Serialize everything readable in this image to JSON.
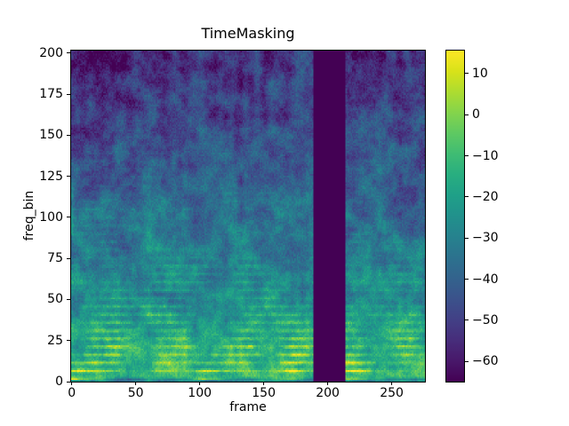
{
  "chart_data": {
    "type": "heatmap",
    "title": "TimeMasking",
    "xlabel": "frame",
    "ylabel": "freq_bin",
    "colormap": "viridis",
    "n_frames": 276,
    "n_freq_bins": 201,
    "xlim": [
      -0.5,
      276
    ],
    "ylim": [
      0,
      201.6
    ],
    "value_range": [
      -64.9,
      15.6
    ],
    "x_ticks": {
      "values": [
        0,
        50,
        100,
        150,
        200,
        250
      ],
      "labels": [
        "0",
        "50",
        "100",
        "150",
        "200",
        "250"
      ]
    },
    "y_ticks": {
      "values": [
        0,
        25,
        50,
        75,
        100,
        125,
        150,
        175,
        200
      ],
      "labels": [
        "0",
        "25",
        "50",
        "75",
        "100",
        "125",
        "150",
        "175",
        "200"
      ]
    },
    "colorbar_ticks": {
      "values": [
        10,
        0,
        -10,
        -20,
        -30,
        -40,
        -50,
        -60
      ],
      "labels": [
        "10",
        "0",
        "−10",
        "−20",
        "−30",
        "−40",
        "−50",
        "−60"
      ]
    },
    "time_mask": {
      "frame_start": 189,
      "frame_end": 214,
      "fill_value": -64.9
    },
    "content_summary": "Log-power spectrogram (viridis colormap) with strong harmonic horizontal bands in low frequency bins fading toward high bins, and one solid dark time-masked vertical band covering frames ~189-214."
  }
}
